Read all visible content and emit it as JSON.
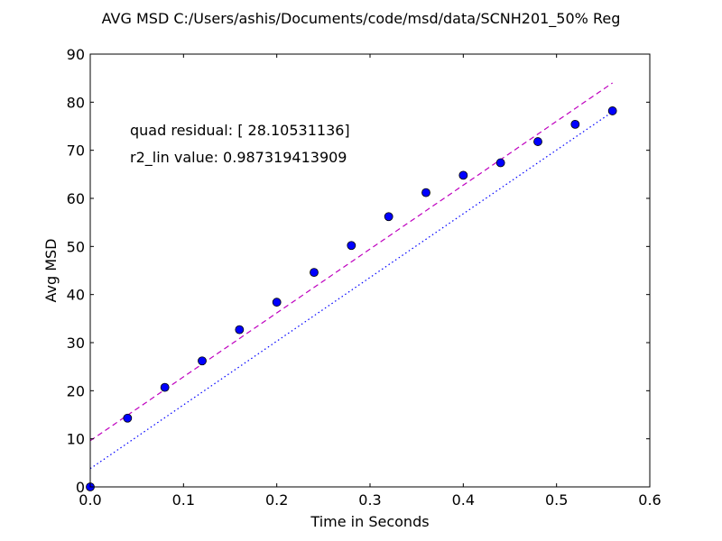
{
  "colors": {
    "data": "#0000ff",
    "fit_linear": "#bf00bf",
    "fit_quadratic": "#0000ff",
    "axes": "#000000"
  },
  "chart_data": {
    "type": "scatter",
    "title": "AVG MSD C:/Users/ashis/Documents/code/msd/data/SCNH201_50% Reg",
    "xlabel": "Time in Seconds",
    "ylabel": "Avg MSD",
    "xlim": [
      0.0,
      0.6
    ],
    "ylim": [
      0,
      90
    ],
    "xticks": [
      "0.0",
      "0.1",
      "0.2",
      "0.3",
      "0.4",
      "0.5",
      "0.6"
    ],
    "yticks": [
      "0",
      "10",
      "20",
      "30",
      "40",
      "50",
      "60",
      "70",
      "80",
      "90"
    ],
    "grid": false,
    "annotations": [
      "quad residual: [ 28.10531136]",
      "r2_lin value: 0.987319413909"
    ],
    "series": [
      {
        "marker": "circle",
        "x": [
          0.0,
          0.04,
          0.08,
          0.12,
          0.16,
          0.2,
          0.24,
          0.28,
          0.32,
          0.36,
          0.4,
          0.44,
          0.48,
          0.52,
          0.56
        ],
        "y": [
          0.0,
          14.3,
          20.7,
          26.2,
          32.7,
          38.4,
          44.6,
          50.2,
          56.2,
          61.2,
          64.8,
          67.4,
          71.8,
          75.4,
          78.2
        ]
      },
      {
        "line": "dashed",
        "x": [
          0.0,
          0.56
        ],
        "y": [
          9.6,
          84.0
        ]
      },
      {
        "line": "dotted",
        "x": [
          0.0,
          0.56
        ],
        "y": [
          3.8,
          78.0
        ]
      }
    ]
  }
}
